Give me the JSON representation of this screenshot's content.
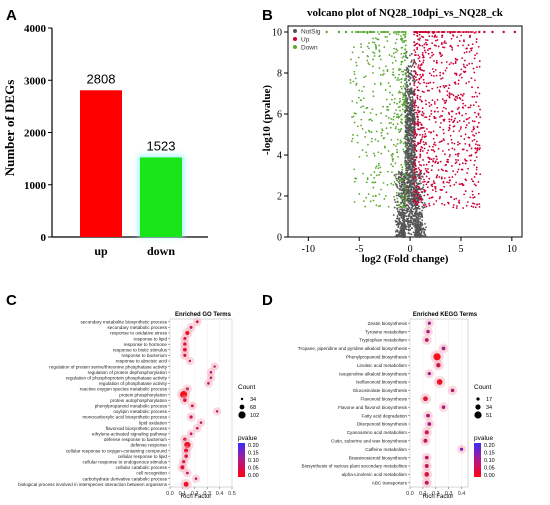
{
  "chart_data": [
    {
      "panel": "A",
      "type": "bar",
      "categories": [
        "up",
        "down"
      ],
      "values": [
        2808,
        1523
      ],
      "data_labels": [
        "2808",
        "1523"
      ],
      "colors": [
        "#ff0000",
        "#19e619"
      ],
      "glow_color": "#a6f5ff",
      "ylabel": "Number of DEGs",
      "ylim": [
        0,
        4000
      ],
      "yticks": [
        "0",
        "1000",
        "2000",
        "3000",
        "4000"
      ],
      "grid": false
    },
    {
      "panel": "B",
      "type": "scatter",
      "title": "volcano plot of NQ28_10dpi_vs_NQ28_ck",
      "xlabel": "log2 (Fold change)",
      "ylabel": "-log10 (pvalue)",
      "xlim": [
        -12,
        11
      ],
      "ylim": [
        0,
        10
      ],
      "xticks": [
        -10,
        -5,
        0,
        5,
        10
      ],
      "yticks": [
        0,
        2,
        4,
        6,
        8,
        10
      ],
      "legend": [
        {
          "label": "NotSig",
          "color": "#555555"
        },
        {
          "label": "Up",
          "color": "#cc0033"
        },
        {
          "label": "Down",
          "color": "#5aa832"
        }
      ],
      "legend_position": "top-left",
      "grid": false
    },
    {
      "panel": "C",
      "type": "scatter",
      "title": "Enriched GO Terms",
      "xlabel": "Rich Factor",
      "xlim": [
        0,
        0.5
      ],
      "xticks": [
        "0.0",
        "0.1",
        "0.2",
        "0.3",
        "0.4",
        "0.5"
      ],
      "terms": [
        "secondary metabolite biosynthetic process",
        "secondary metabolic process",
        "response to oxidative stress",
        "response to lipid",
        "response to hormone",
        "response to biotic stimulus",
        "response to bacterium",
        "response to abscisic acid",
        "regulation of protein serine/threonine phosphatase activity",
        "regulation of protein dephosphorylation",
        "regulation of phosphoprotein phosphatase activity",
        "regulation of phosphatase activity",
        "reactive oxygen species metabolic process",
        "protein phosphorylation",
        "protein autophosphorylation",
        "phenylpropanoid metabolic process",
        "oxylipin metabolic process",
        "monocarboxylic acid biosynthetic process",
        "lipid oxidation",
        "flavonoid biosynthetic process",
        "ethylene-activated signaling pathway",
        "defense response to bacterium",
        "defense response",
        "cellular response to oxygen-containing compound",
        "cellular response to lipid",
        "cellular response to endogenous stimulus",
        "cellular catabolic process",
        "cell recognition",
        "carbohydrate derivative catabolic process",
        "biological process involved in interspecies interaction between organisms"
      ],
      "rich_factor": [
        0.22,
        0.17,
        0.14,
        0.12,
        0.12,
        0.12,
        0.12,
        0.16,
        0.36,
        0.33,
        0.33,
        0.31,
        0.14,
        0.11,
        0.12,
        0.18,
        0.38,
        0.17,
        0.25,
        0.22,
        0.17,
        0.12,
        0.14,
        0.13,
        0.13,
        0.11,
        0.1,
        0.14,
        0.21,
        0.13
      ],
      "count": [
        40,
        42,
        60,
        45,
        50,
        55,
        45,
        35,
        34,
        36,
        36,
        38,
        45,
        102,
        50,
        42,
        35,
        45,
        36,
        38,
        40,
        50,
        90,
        60,
        50,
        48,
        60,
        40,
        36,
        70
      ],
      "pvalue": [
        0.05,
        0.05,
        0.02,
        0.04,
        0.04,
        0.03,
        0.03,
        0.06,
        0.08,
        0.08,
        0.08,
        0.08,
        0.05,
        0.01,
        0.04,
        0.04,
        0.09,
        0.06,
        0.07,
        0.05,
        0.06,
        0.04,
        0.02,
        0.03,
        0.05,
        0.04,
        0.03,
        0.06,
        0.07,
        0.02
      ],
      "size_legend_title": "Count",
      "size_legend": [
        34,
        68,
        102
      ],
      "color_legend_title": "pvalue",
      "color_legend_ticks": [
        "0.20",
        "0.15",
        "0.10",
        "0.05",
        "0.00"
      ]
    },
    {
      "panel": "D",
      "type": "scatter",
      "title": "Enriched KEGG Terms",
      "xlabel": "Rich Factor",
      "xlim": [
        0,
        0.45
      ],
      "xticks": [
        "0.0",
        "0.1",
        "0.2",
        "0.3",
        "0.4"
      ],
      "terms": [
        "Zeatin biosynthesis",
        "Tyrosine metabolism",
        "Tryptophan metabolism",
        "Tropane, piperidine and pyridine alkaloid biosynthesis",
        "Phenylpropanoid biosynthesis",
        "Linoleic acid metabolism",
        "Isoquinoline alkaloid biosynthesis",
        "Isoflavonoid biosynthesis",
        "Glucosinolate biosynthesis",
        "Flavonoid biosynthesis",
        "Flavone and flavonol biosynthesis",
        "Fatty acid degradation",
        "Diterpenoid biosynthesis",
        "Cyanoamino acid metabolism",
        "Cutin, suberine and wax biosynthesis",
        "Caffeine metabolism",
        "Brassinosteroid biosynthesis",
        "Biosynthesis of various plant secondary metabolites",
        "alpha-Linolenic acid metabolism",
        "ABC transporters"
      ],
      "rich_factor": [
        0.15,
        0.14,
        0.13,
        0.26,
        0.21,
        0.22,
        0.15,
        0.23,
        0.33,
        0.12,
        0.26,
        0.14,
        0.15,
        0.13,
        0.12,
        0.4,
        0.13,
        0.13,
        0.13,
        0.13
      ],
      "count": [
        17,
        20,
        22,
        22,
        51,
        28,
        18,
        38,
        20,
        30,
        20,
        22,
        22,
        26,
        24,
        17,
        22,
        24,
        30,
        24
      ],
      "pvalue": [
        0.1,
        0.09,
        0.08,
        0.1,
        0.01,
        0.05,
        0.1,
        0.02,
        0.08,
        0.03,
        0.09,
        0.08,
        0.09,
        0.05,
        0.06,
        0.14,
        0.07,
        0.06,
        0.04,
        0.06
      ],
      "size_legend_title": "Count",
      "size_legend": [
        17,
        34,
        51
      ],
      "color_legend_title": "pvalue",
      "color_legend_ticks": [
        "0.20",
        "0.15",
        "0.10",
        "0.05",
        "0.00"
      ]
    }
  ]
}
